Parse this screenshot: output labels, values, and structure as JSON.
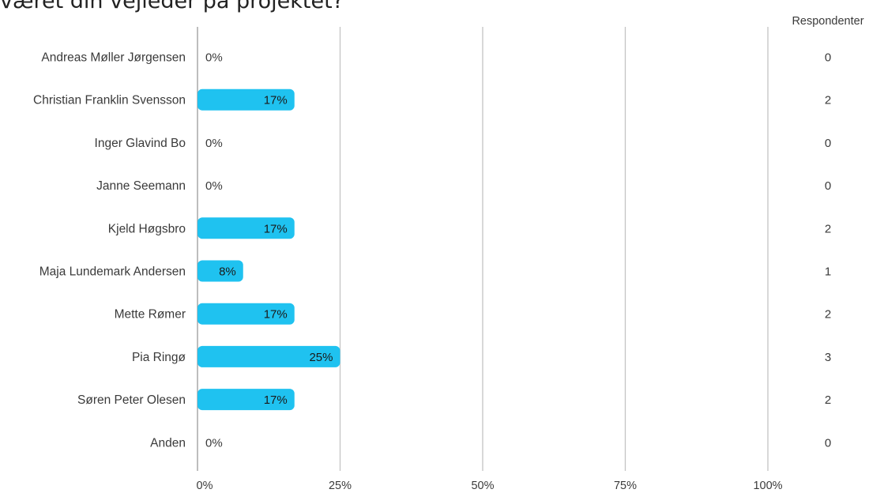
{
  "chart_data": {
    "type": "bar",
    "orientation": "horizontal",
    "title": "været din vejleder på projektet?",
    "respondents_header": "Respondenter",
    "categories": [
      "Andreas Møller Jørgensen",
      "Christian Franklin Svensson",
      "Inger Glavind Bo",
      "Janne Seemann",
      "Kjeld Høgsbro",
      "Maja Lundemark Andersen",
      "Mette Rømer",
      "Pia Ringø",
      "Søren Peter Olesen",
      "Anden"
    ],
    "values": [
      0,
      17,
      0,
      0,
      17,
      8,
      17,
      25,
      17,
      0
    ],
    "value_labels": [
      "0%",
      "17%",
      "0%",
      "0%",
      "17%",
      "8%",
      "17%",
      "25%",
      "17%",
      "0%"
    ],
    "respondents": [
      0,
      2,
      0,
      0,
      2,
      1,
      2,
      3,
      2,
      0
    ],
    "xticks": [
      "0%",
      "25%",
      "50%",
      "75%",
      "100%"
    ],
    "xlim": [
      0,
      100
    ],
    "grid": true,
    "colors": {
      "bar": "#1fc2f0",
      "grid": "#c4c4c4",
      "label_text": "#3a3a3a",
      "bar_label_text": "#1a1a1a"
    }
  }
}
